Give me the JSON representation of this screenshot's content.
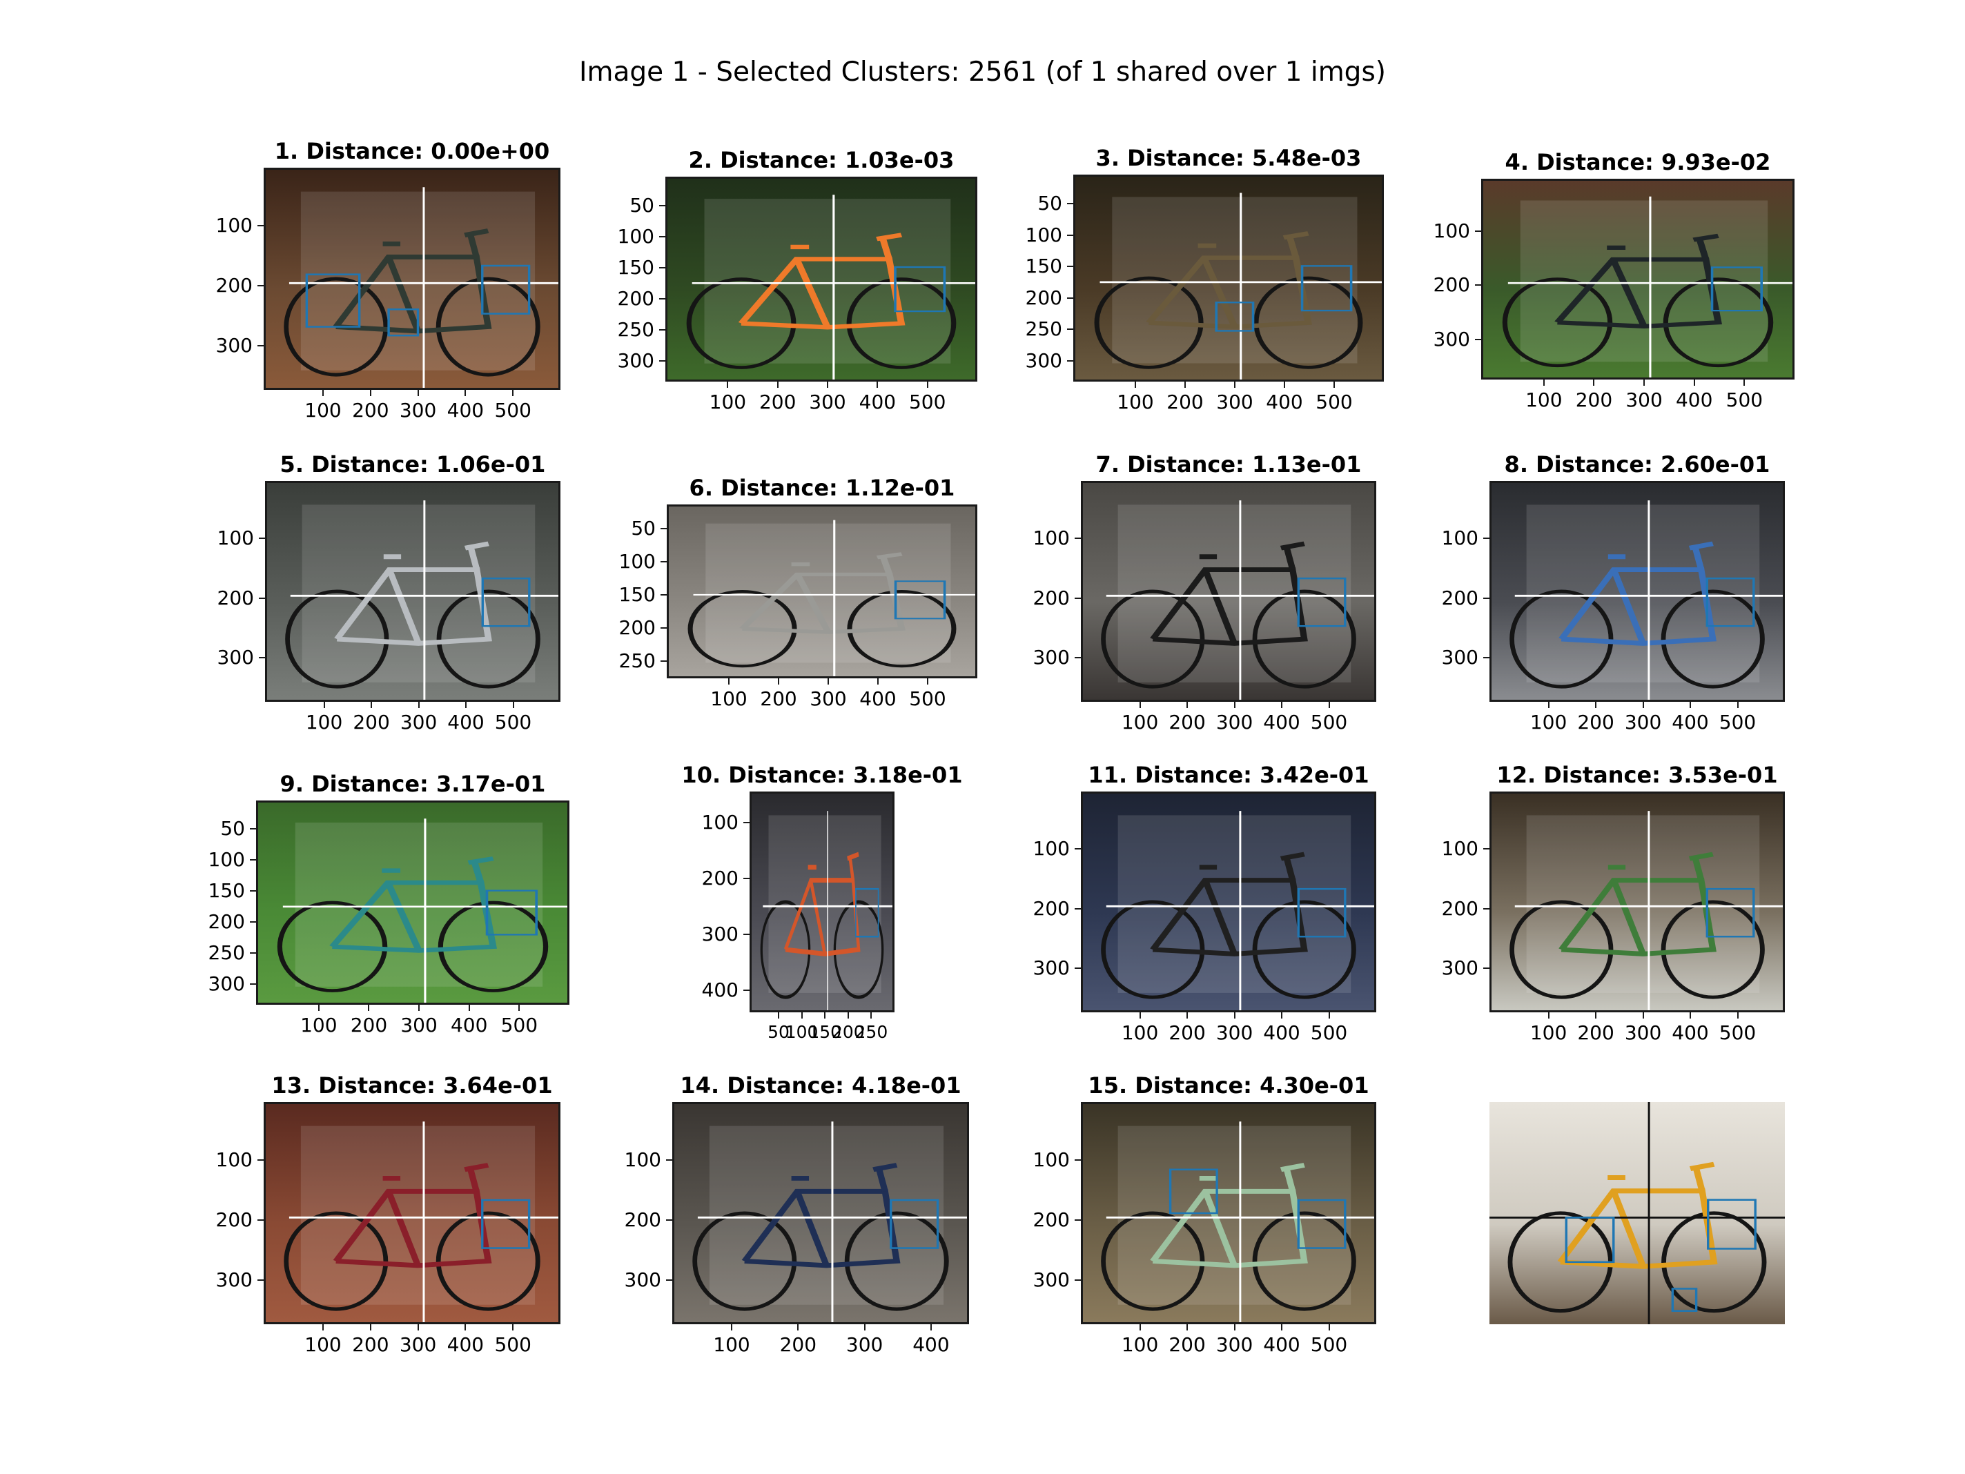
{
  "figure_title": "Image 1 - Selected Clusters: 2561 (of 1 shared over 1 imgs)",
  "colors": {
    "background": "#ffffff",
    "frame": "#1a1a1a",
    "crosshair": "#ffffff",
    "query_crosshair": "#111111",
    "box": "#1f77b4"
  },
  "panels": [
    {
      "title": "1. Distance: 0.00e+00",
      "scene": "indoor-wood",
      "bike": "#2f3a33",
      "y_ticks": [
        "100",
        "200",
        "300"
      ],
      "x_ticks": [
        "100",
        "200",
        "300",
        "400",
        "500"
      ]
    },
    {
      "title": "2. Distance: 1.03e-03",
      "scene": "grass-dark",
      "bike": "#ef7a2a",
      "y_ticks": [
        "50",
        "100",
        "150",
        "200",
        "250",
        "300"
      ],
      "x_ticks": [
        "100",
        "200",
        "300",
        "400",
        "500"
      ]
    },
    {
      "title": "3. Distance: 5.48e-03",
      "scene": "street-night",
      "bike": "#6a5a3c",
      "y_ticks": [
        "50",
        "100",
        "150",
        "200",
        "250",
        "300"
      ],
      "x_ticks": [
        "100",
        "200",
        "300",
        "400",
        "500"
      ]
    },
    {
      "title": "4. Distance: 9.93e-02",
      "scene": "brick-grass",
      "bike": "#1e2528",
      "y_ticks": [
        "100",
        "200",
        "300"
      ],
      "x_ticks": [
        "100",
        "200",
        "300",
        "400",
        "500"
      ]
    },
    {
      "title": "5. Distance: 1.06e-01",
      "scene": "sidewalk",
      "bike": "#b8bcc0",
      "y_ticks": [
        "100",
        "200",
        "300"
      ],
      "x_ticks": [
        "100",
        "200",
        "300",
        "400",
        "500"
      ]
    },
    {
      "title": "6. Distance: 1.12e-01",
      "scene": "concrete-wall",
      "bike": "#9a9a96",
      "y_ticks": [
        "50",
        "100",
        "150",
        "200",
        "250"
      ],
      "x_ticks": [
        "100",
        "200",
        "300",
        "400",
        "500"
      ]
    },
    {
      "title": "7. Distance: 1.13e-01",
      "scene": "office",
      "bike": "#1b1b1b",
      "y_ticks": [
        "100",
        "200",
        "300"
      ],
      "x_ticks": [
        "100",
        "200",
        "300",
        "400",
        "500"
      ]
    },
    {
      "title": "8. Distance: 2.60e-01",
      "scene": "building-street",
      "bike": "#3a6fb8",
      "y_ticks": [
        "100",
        "200",
        "300"
      ],
      "x_ticks": [
        "100",
        "200",
        "300",
        "400",
        "500"
      ]
    },
    {
      "title": "9. Distance: 3.17e-01",
      "scene": "lawn",
      "bike": "#2b8a8a",
      "y_ticks": [
        "50",
        "100",
        "150",
        "200",
        "250",
        "300"
      ],
      "x_ticks": [
        "100",
        "200",
        "300",
        "400",
        "500"
      ]
    },
    {
      "title": "10. Distance: 3.18e-01",
      "scene": "child-portrait",
      "bike": "#d4562a",
      "y_ticks": [
        "100",
        "200",
        "300",
        "400"
      ],
      "x_ticks": [
        "50",
        "100",
        "150",
        "200",
        "250"
      ]
    },
    {
      "title": "11. Distance: 3.42e-01",
      "scene": "park-bench",
      "bike": "#202020",
      "y_ticks": [
        "100",
        "200",
        "300"
      ],
      "x_ticks": [
        "100",
        "200",
        "300",
        "400",
        "500"
      ]
    },
    {
      "title": "12. Distance: 3.53e-01",
      "scene": "tree-house",
      "bike": "#3f7d3a",
      "y_ticks": [
        "100",
        "200",
        "300"
      ],
      "x_ticks": [
        "100",
        "200",
        "300",
        "400",
        "500"
      ]
    },
    {
      "title": "13. Distance: 3.64e-01",
      "scene": "brick-wall",
      "bike": "#8a1f2a",
      "y_ticks": [
        "100",
        "200",
        "300"
      ],
      "x_ticks": [
        "100",
        "200",
        "300",
        "400",
        "500"
      ]
    },
    {
      "title": "14. Distance: 4.18e-01",
      "scene": "wood-fence",
      "bike": "#1f2f55",
      "y_ticks": [
        "100",
        "200",
        "300"
      ],
      "x_ticks": [
        "100",
        "200",
        "300",
        "400"
      ]
    },
    {
      "title": "15. Distance: 4.30e-01",
      "scene": "paving",
      "bike": "#9cc2a0",
      "y_ticks": [
        "100",
        "200",
        "300"
      ],
      "x_ticks": [
        "100",
        "200",
        "300",
        "400",
        "500"
      ]
    },
    {
      "title": "",
      "scene": "radiator-room",
      "bike": "#e0a020",
      "y_ticks": [],
      "x_ticks": []
    }
  ]
}
